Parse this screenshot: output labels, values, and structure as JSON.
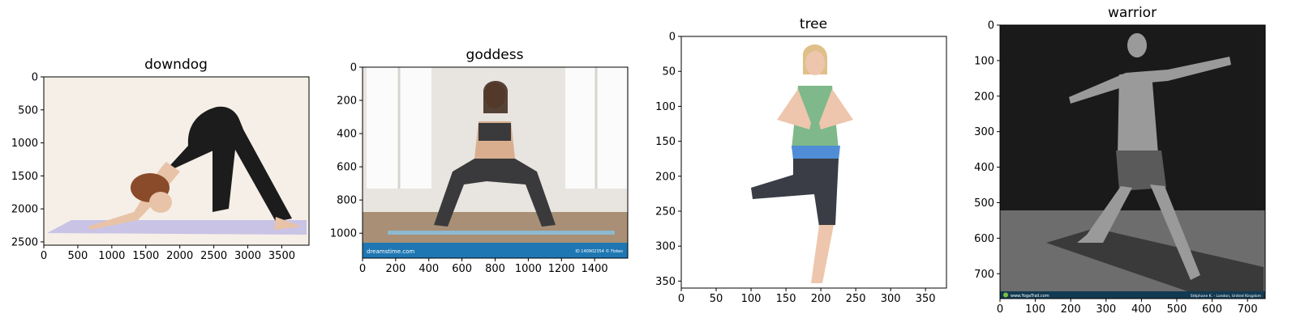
{
  "chart_data": [
    {
      "type": "image",
      "title": "downdog",
      "subject": "person in downward dog pose on a lavender mat",
      "xlim": [
        0,
        3900
      ],
      "ylim": [
        2550,
        0
      ],
      "xticks": [
        0,
        500,
        1000,
        1500,
        2000,
        2500,
        3000,
        3500
      ],
      "yticks": [
        0,
        500,
        1000,
        1500,
        2000,
        2500
      ],
      "colors": {
        "background": "#f5efe8",
        "mat": "#c9c3e6",
        "outfit": "#1c1c1c",
        "skin": "#e8c3a8",
        "hair": "#8a4b2a"
      }
    },
    {
      "type": "image",
      "title": "goddess",
      "subject": "woman in goddess pose in a bright room with windows",
      "xlim": [
        0,
        1600
      ],
      "ylim": [
        1150,
        0
      ],
      "xticks": [
        0,
        200,
        400,
        600,
        800,
        1000,
        1200,
        1400
      ],
      "yticks": [
        0,
        200,
        400,
        600,
        800,
        1000
      ],
      "watermark_left": "dreamstime.com",
      "watermark_right": "ID 140902354 © Fizkes",
      "colors": {
        "wall": "#e8e4df",
        "window": "#fbfbfb",
        "floor": "#a88f76",
        "banner": "#1e77b3",
        "outfit": "#3a3a3c",
        "skin": "#d9ae8e"
      }
    },
    {
      "type": "image",
      "title": "tree",
      "subject": "woman standing in tree pose on white background",
      "xlim": [
        0,
        380
      ],
      "ylim": [
        360,
        0
      ],
      "xticks": [
        0,
        50,
        100,
        150,
        200,
        250,
        300,
        350
      ],
      "yticks": [
        0,
        50,
        100,
        150,
        200,
        250,
        300,
        350
      ],
      "colors": {
        "background": "#ffffff",
        "top": "#7fb88a",
        "band": "#4f8ed6",
        "pants": "#3a3d45",
        "skin": "#eec6ad"
      }
    },
    {
      "type": "image",
      "title": "warrior",
      "subject": "black and white photo of man in warrior pose in a garden",
      "xlim": [
        0,
        750
      ],
      "ylim": [
        770,
        0
      ],
      "xticks": [
        0,
        100,
        200,
        300,
        400,
        500,
        600,
        700
      ],
      "yticks": [
        0,
        100,
        200,
        300,
        400,
        500,
        600,
        700
      ],
      "watermark_left": "www.YogaTrail.com",
      "watermark_right": "Stéphane K. - London, United Kingdom",
      "colors": {
        "dark": "#1a1a1a",
        "grass": "#6d6d6d",
        "mat": "#3a3a3a",
        "banner": "#123a52",
        "skin": "#9a9a9a"
      }
    }
  ]
}
